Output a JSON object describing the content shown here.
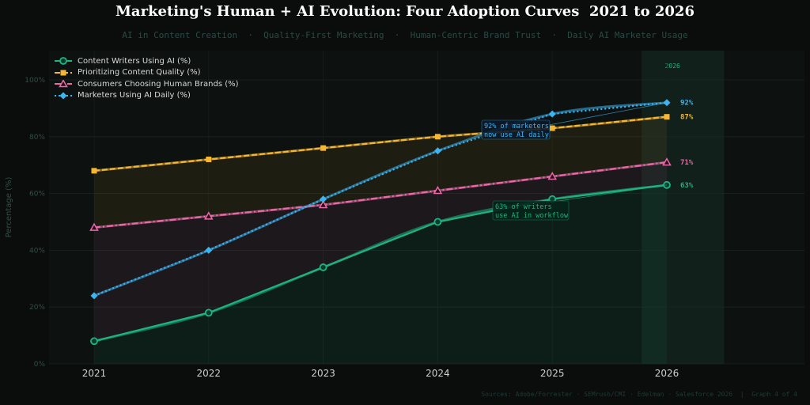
{
  "title": "Marketing's Human + AI Evolution: Four Adoption Curves  2021 to 2026",
  "subtitle": "AI in Content Creation  ·  Quality-First Marketing  ·  Human-Centric Brand Trust  ·  Daily AI Marketer Usage",
  "source": "Sources: Adobe/Forrester · SEMrush/CMI · Edelman · Salesforce 2026  |  Graph 4 of 4",
  "chart_data": {
    "type": "line",
    "x": [
      2021,
      2022,
      2023,
      2024,
      2025,
      2026
    ],
    "xlim": [
      2020.6,
      2027.2
    ],
    "ylim": [
      0,
      110
    ],
    "yticks": [
      0,
      20,
      40,
      60,
      80,
      100
    ],
    "ytick_labels": [
      "0%",
      "20%",
      "40%",
      "60%",
      "80%",
      "100%"
    ],
    "xtick_labels": [
      "2021",
      "2022",
      "2023",
      "2024",
      "2025",
      "2026"
    ],
    "ylabel": "Percentage (%)",
    "grid": true,
    "legend_position": "top-left",
    "highlight_label": "2026",
    "series": [
      {
        "name": "Content Writers Using AI (%)",
        "values": [
          8,
          18,
          34,
          50,
          58,
          63
        ],
        "color": "#1db482",
        "marker": "circle",
        "style": "solid",
        "end_label": "63%"
      },
      {
        "name": "Prioritizing Content Quality (%)",
        "values": [
          68,
          72,
          76,
          80,
          83,
          87
        ],
        "color": "#f5b731",
        "marker": "square",
        "style": "dashed",
        "end_label": "87%"
      },
      {
        "name": "Consumers Choosing Human Brands (%)",
        "values": [
          48,
          52,
          56,
          61,
          66,
          71
        ],
        "color": "#e86aa8",
        "marker": "triangle",
        "style": "dashdot",
        "end_label": "71%"
      },
      {
        "name": "Marketers Using AI Daily (%)",
        "values": [
          24,
          40,
          58,
          75,
          88,
          92
        ],
        "color": "#3db4f2",
        "marker": "diamond",
        "style": "dotted",
        "end_label": "92%"
      }
    ],
    "annotations": [
      {
        "text": [
          "92% of marketers",
          "now use AI daily"
        ],
        "series": 3,
        "color": "#3db4f2"
      },
      {
        "text": [
          "63% of writers",
          "use AI in workflow"
        ],
        "series": 0,
        "color": "#1db482"
      }
    ]
  }
}
